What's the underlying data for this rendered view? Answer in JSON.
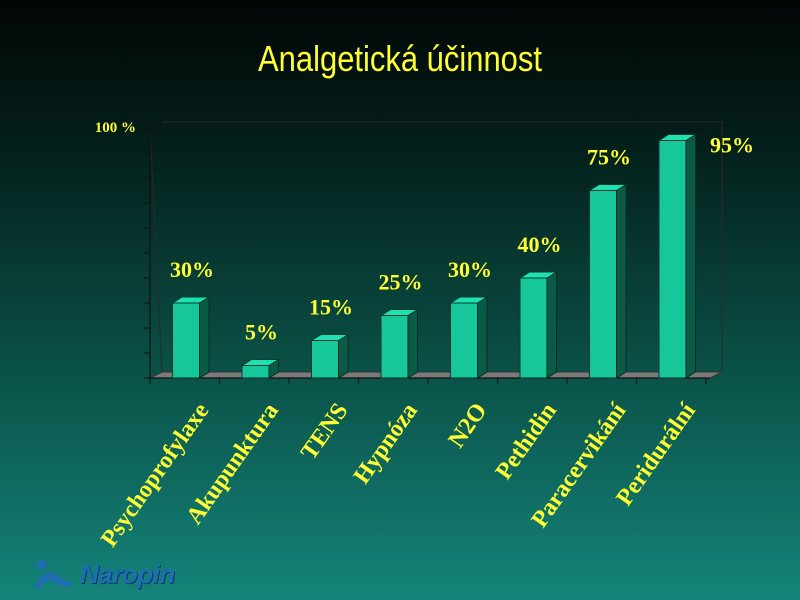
{
  "slide": {
    "title": "Analgetická účinnost",
    "logo_text": "Naropin"
  },
  "colors": {
    "bar_front": "#16c79a",
    "bar_top": "#1fe0b0",
    "bar_side": "#0a5a45",
    "text_yellow": "#ffff33",
    "floor": "#7a7a7a"
  },
  "chart_data": {
    "type": "bar",
    "title": "Analgetická účinnost",
    "categories": [
      "Psychoprofylaxe",
      "Akupunktura",
      "TENS",
      "Hypnóza",
      "N2O",
      "Pethidin",
      "Paracervikání",
      "Peridurální"
    ],
    "values": [
      30,
      5,
      15,
      25,
      30,
      40,
      75,
      95
    ],
    "data_labels": [
      "30%",
      "5%",
      "15%",
      "25%",
      "30%",
      "40%",
      "75%",
      "95%"
    ],
    "ylim": [
      0,
      100
    ],
    "y_tick_label": "100 %",
    "grid": false,
    "legend": "none"
  }
}
